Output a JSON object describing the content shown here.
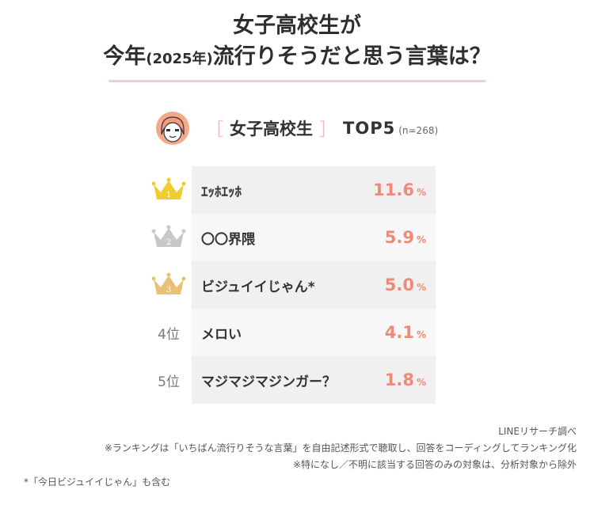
{
  "title": {
    "line1": "女子高校生が",
    "line2_pre": "今年",
    "line2_year": "(2025年)",
    "line2_post": "流行りそうだと思う言葉は？"
  },
  "header": {
    "bracket_open": "［",
    "category": "女子高校生",
    "bracket_close": "］",
    "top": "TOP5",
    "n": "(n=268)"
  },
  "ranking": [
    {
      "rank_label": "1",
      "icon": "gold-crown-icon",
      "word": "ｴｯﾎｴｯﾎ",
      "value": "11.6",
      "unit": "%"
    },
    {
      "rank_label": "2",
      "icon": "silver-crown-icon",
      "word": "〇〇界隈",
      "value": "5.9",
      "unit": "%"
    },
    {
      "rank_label": "3",
      "icon": "bronze-crown-icon",
      "word": "ビジュイイじゃん*",
      "value": "5.0",
      "unit": "%"
    },
    {
      "rank_label": "4位",
      "icon": "",
      "word": "メロい",
      "value": "4.1",
      "unit": "%"
    },
    {
      "rank_label": "5位",
      "icon": "",
      "word": "マジマジマジンガー？",
      "value": "1.8",
      "unit": "%"
    }
  ],
  "colors": {
    "gold": "#f2cb2e",
    "silver": "#c8c8c8",
    "bronze": "#e8c174",
    "accent_pink": "#f4c9dc",
    "value_color": "#ef8a78"
  },
  "footnotes": {
    "source": "LINEリサーチ調べ",
    "note1": "※ランキングは「いちばん流行りそうな言葉」を自由記述形式で聴取し、回答をコーディングしてランキング化",
    "note2": "※特になし／不明に該当する回答のみの対象は、分析対象から除外",
    "note3": "*「今日ビジュイイじゃん」も含む"
  }
}
